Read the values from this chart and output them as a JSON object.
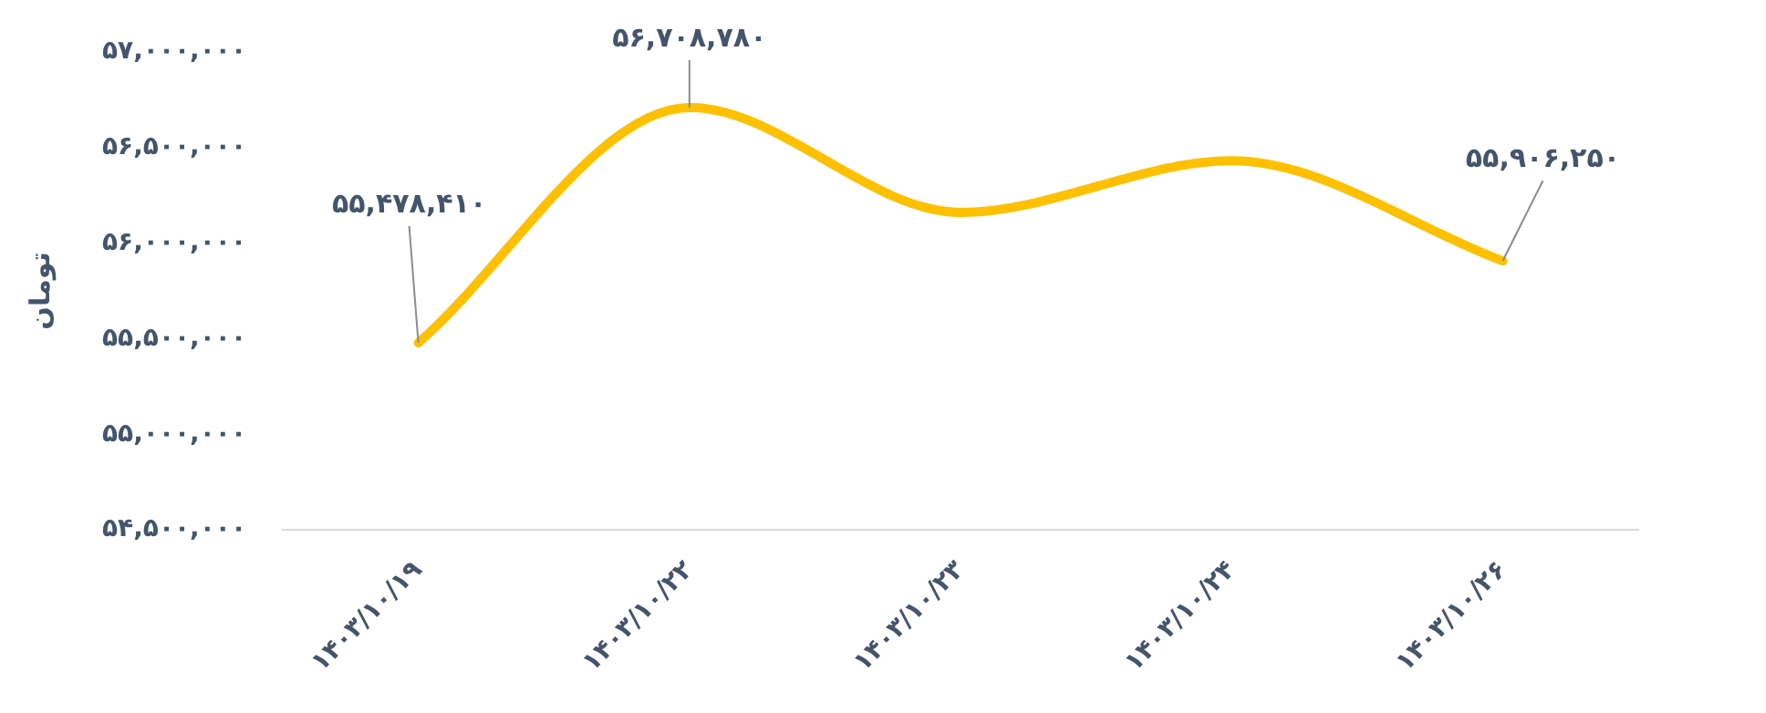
{
  "chart_data": {
    "type": "line",
    "ylabel": "تومان",
    "categories": [
      "۱۴۰۳/۱۰/۱۹",
      "۱۴۰۳/۱۰/۲۲",
      "۱۴۰۳/۱۰/۲۳",
      "۱۴۰۳/۱۰/۲۴",
      "۱۴۰۳/۱۰/۲۶"
    ],
    "series": [
      {
        "color": "#ffc000",
        "values": [
          55478410,
          56708780,
          56160000,
          56430000,
          55906250
        ],
        "value_labels": [
          "۵۵,۴۷۸,۴۱۰",
          "۵۶,۷۰۸,۷۸۰",
          null,
          null,
          "۵۵,۹۰۶,۲۵۰"
        ]
      }
    ],
    "ylim": [
      54500000,
      57000000
    ],
    "yticks": [
      {
        "value": 54500000,
        "label": "۵۴,۵۰۰,۰۰۰"
      },
      {
        "value": 55000000,
        "label": "۵۵,۰۰۰,۰۰۰"
      },
      {
        "value": 55500000,
        "label": "۵۵,۵۰۰,۰۰۰"
      },
      {
        "value": 56000000,
        "label": "۵۶,۰۰۰,۰۰۰"
      },
      {
        "value": 56500000,
        "label": "۵۶,۵۰۰,۰۰۰"
      },
      {
        "value": 57000000,
        "label": "۵۷,۰۰۰,۰۰۰"
      }
    ],
    "grid": false,
    "legend": false,
    "marker": "none",
    "line_style": "solid"
  }
}
